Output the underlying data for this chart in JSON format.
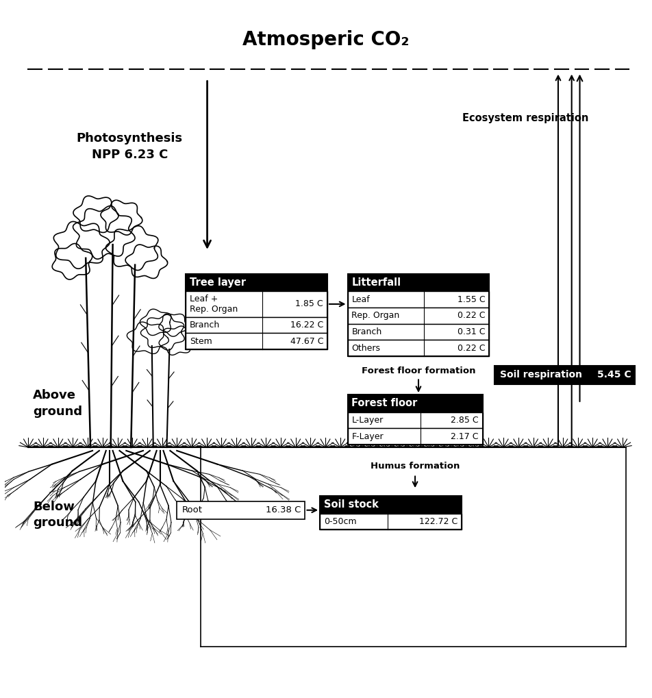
{
  "title": "Atmosperic CO₂",
  "photosynthesis_label": "Photosynthesis\nNPP 6.23 C",
  "ecosystem_respiration": "Ecosystem respiration",
  "tree_layer_header": "Tree layer",
  "tree_layer_rows": [
    [
      "Leaf +\nRep. Organ",
      "1.85 C"
    ],
    [
      "Branch",
      "16.22 C"
    ],
    [
      "Stem",
      "47.67 C"
    ]
  ],
  "litterfall_header": "Litterfall",
  "litterfall_rows": [
    [
      "Leaf",
      "1.55 C"
    ],
    [
      "Rep. Organ",
      "0.22 C"
    ],
    [
      "Branch",
      "0.31 C"
    ],
    [
      "Others",
      "0.22 C"
    ]
  ],
  "forest_floor_formation": "Forest floor formation",
  "soil_respiration_label": "Soil respiration",
  "soil_respiration_value": "5.45 C",
  "forest_floor_header": "Forest floor",
  "forest_floor_rows": [
    [
      "L-Layer",
      "2.85 C"
    ],
    [
      "F-Layer",
      "2.17 C"
    ]
  ],
  "humus_formation": "Humus formation",
  "root_label": "Root",
  "root_value": "16.38 C",
  "soil_stock_header": "Soil stock",
  "soil_stock_rows": [
    [
      "0-50cm",
      "122.72 C"
    ]
  ],
  "above_ground": "Above\nground",
  "below_ground": "Below\nground",
  "bg_color": "#ffffff"
}
